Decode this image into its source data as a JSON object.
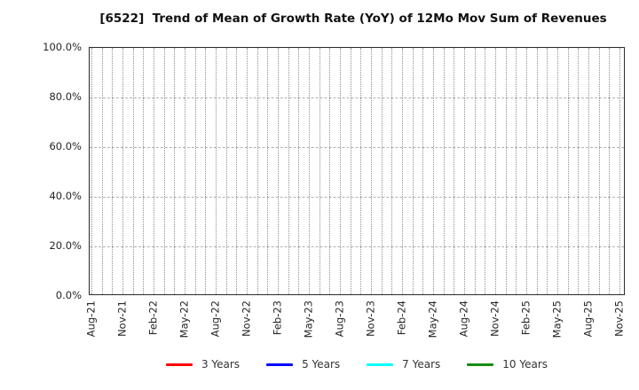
{
  "chart_data": {
    "type": "line",
    "title": "[6522]  Trend of Mean of Growth Rate (YoY) of 12Mo Mov Sum of Revenues",
    "x_tick_labels": [
      "Aug-21",
      "Nov-21",
      "Feb-22",
      "May-22",
      "Aug-22",
      "Nov-22",
      "Feb-23",
      "May-23",
      "Aug-23",
      "Nov-23",
      "Feb-24",
      "May-24",
      "Aug-24",
      "Nov-24",
      "Feb-25",
      "May-25",
      "Aug-25",
      "Nov-25"
    ],
    "x_months_total": 52,
    "x_label_step_months": 3,
    "y_tick_labels": [
      "0.0%",
      "20.0%",
      "40.0%",
      "60.0%",
      "80.0%",
      "100.0%"
    ],
    "ylim": [
      0.0,
      100.0
    ],
    "grid": true,
    "legend_position": "bottom",
    "series": [
      {
        "name": "3 Years",
        "color": "#ff0000",
        "values": []
      },
      {
        "name": "5 Years",
        "color": "#0000ff",
        "values": []
      },
      {
        "name": "7 Years",
        "color": "#00ffff",
        "values": []
      },
      {
        "name": "10 Years",
        "color": "#128c12",
        "values": []
      }
    ]
  }
}
